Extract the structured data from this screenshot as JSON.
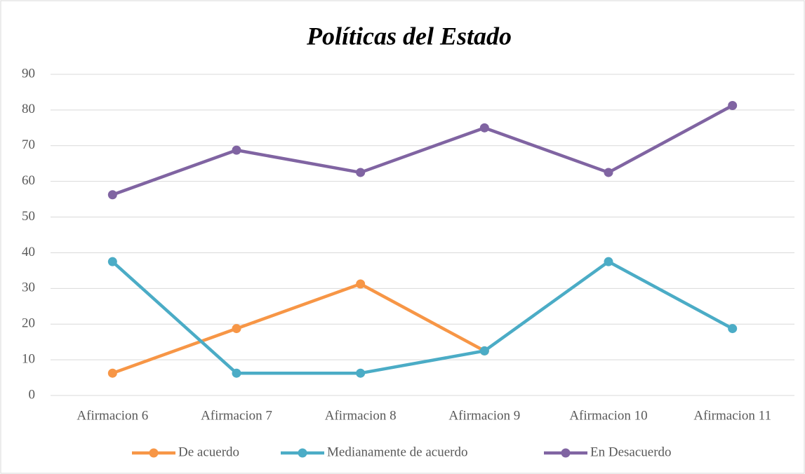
{
  "chart_data": {
    "type": "line",
    "title": "Políticas del Estado",
    "categories": [
      "Afirmacion 6",
      "Afirmacion 7",
      "Afirmacion 8",
      "Afirmacion 9",
      "Afirmacion 10",
      "Afirmacion 11"
    ],
    "series": [
      {
        "name": "De acuerdo",
        "color": "#f79646",
        "values": [
          6.25,
          18.75,
          31.25,
          12.5,
          null,
          null
        ]
      },
      {
        "name": "Medianamente de acuerdo",
        "color": "#4bacc6",
        "values": [
          37.5,
          6.25,
          6.25,
          12.5,
          37.5,
          18.75
        ]
      },
      {
        "name": "En Desacuerdo",
        "color": "#8064a2",
        "values": [
          56.25,
          68.75,
          62.5,
          75,
          62.5,
          81.25
        ]
      }
    ],
    "ylim": [
      0,
      90
    ],
    "yticks": [
      0,
      10,
      20,
      30,
      40,
      50,
      60,
      70,
      80,
      90
    ],
    "grid": true,
    "legend": "bottom"
  }
}
